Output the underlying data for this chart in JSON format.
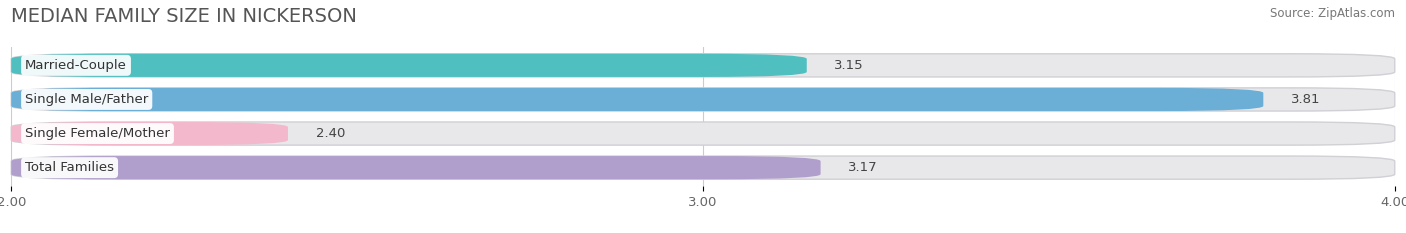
{
  "title": "MEDIAN FAMILY SIZE IN NICKERSON",
  "source": "Source: ZipAtlas.com",
  "categories": [
    "Married-Couple",
    "Single Male/Father",
    "Single Female/Mother",
    "Total Families"
  ],
  "values": [
    3.15,
    3.81,
    2.4,
    3.17
  ],
  "bar_colors": [
    "#50bfbf",
    "#6baed6",
    "#f4b8cc",
    "#b09fcc"
  ],
  "xlim": [
    2.0,
    4.0
  ],
  "xticks": [
    2.0,
    3.0,
    4.0
  ],
  "xtick_labels": [
    "2.00",
    "3.00",
    "4.00"
  ],
  "background_color": "#ffffff",
  "bar_bg_color": "#e8e8ea",
  "title_fontsize": 14,
  "label_fontsize": 9.5,
  "value_fontsize": 9.5,
  "source_fontsize": 8.5,
  "bar_height": 0.68,
  "bar_gap": 0.32
}
